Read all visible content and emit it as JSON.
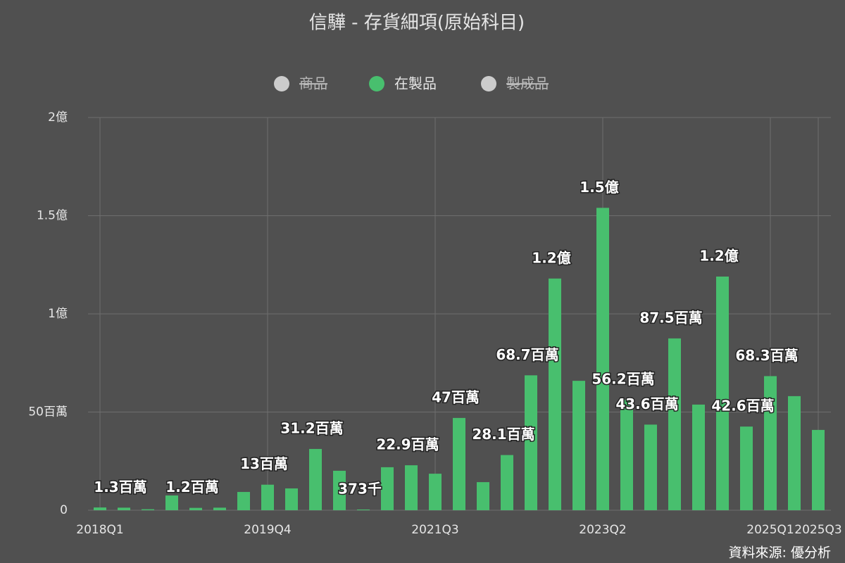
{
  "chart_data": {
    "type": "bar",
    "title": "信驊 - 存貨細項(原始科目)",
    "source": "資料來源: 優分析",
    "categories": [
      "2018Q1",
      null,
      null,
      null,
      null,
      null,
      null,
      "2019Q4",
      null,
      null,
      null,
      null,
      null,
      null,
      "2021Q3",
      null,
      null,
      null,
      null,
      null,
      null,
      "2023Q2",
      null,
      null,
      null,
      null,
      null,
      null,
      "2025Q1",
      null,
      "2025Q3"
    ],
    "series": [
      {
        "name": "商品",
        "color": "#cccccc",
        "visible": false
      },
      {
        "name": "在製品",
        "color": "#48bf6e",
        "visible": true,
        "values": [
          1.4,
          1.3,
          0.5,
          7.5,
          1.2,
          1.3,
          9.3,
          13,
          11.1,
          31.2,
          20.1,
          0.373,
          21.9,
          22.9,
          18.6,
          47,
          14.3,
          28.1,
          68.7,
          118,
          65.9,
          154,
          56.2,
          43.6,
          87.5,
          53.8,
          119,
          42.6,
          68.3,
          58.1,
          40.9
        ],
        "value_labels": [
          null,
          "1.3百萬",
          null,
          null,
          "1.2百萬",
          null,
          null,
          "13百萬",
          null,
          "31.2百萬",
          null,
          "373千",
          null,
          "22.9百萬",
          null,
          "47百萬",
          null,
          "28.1百萬",
          "68.7百萬",
          "1.2億",
          null,
          "1.5億",
          "56.2百萬",
          "43.6百萬",
          "87.5百萬",
          null,
          "1.2億",
          "42.6百萬",
          "68.3百萬",
          null,
          null
        ]
      },
      {
        "name": "製成品",
        "color": "#cccccc",
        "visible": false
      }
    ],
    "ylim": [
      0,
      200
    ],
    "yticks": [
      0,
      {
        "value": 50,
        "label": "50百萬"
      },
      {
        "value": 100,
        "label": "1億"
      },
      {
        "value": 150,
        "label": "1.5億"
      },
      {
        "value": 200,
        "label": "2億"
      }
    ],
    "grid": true
  }
}
